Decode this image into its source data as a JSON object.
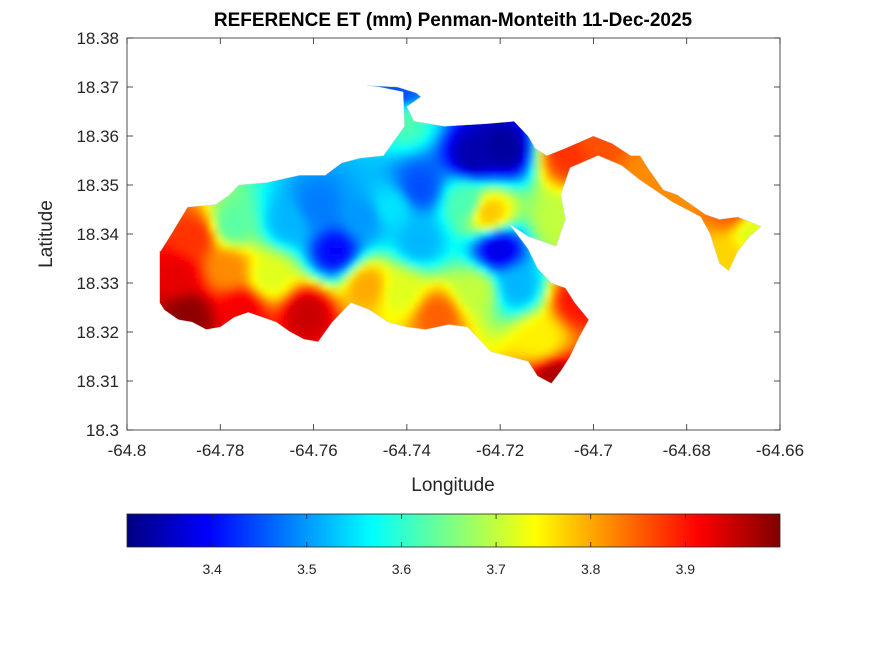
{
  "chart_data": {
    "type": "heatmap",
    "title": "REFERENCE ET (mm) Penman-Monteith 11-Dec-2025",
    "xlabel": "Longitude",
    "ylabel": "Latitude",
    "xlim": [
      -64.8,
      -64.66
    ],
    "ylim": [
      18.3,
      18.38
    ],
    "x_ticks": [
      "-64.8",
      "-64.78",
      "-64.76",
      "-64.74",
      "-64.72",
      "-64.7",
      "-64.68",
      "-64.66"
    ],
    "y_ticks": [
      "18.3",
      "18.31",
      "18.32",
      "18.33",
      "18.34",
      "18.35",
      "18.36",
      "18.37",
      "18.38"
    ],
    "grid": false,
    "colormap": "jet",
    "colorbar": {
      "location": "bottom",
      "range": [
        3.31,
        4.0
      ],
      "ticks": [
        "3.4",
        "3.5",
        "3.6",
        "3.7",
        "3.8",
        "3.9"
      ]
    },
    "colors": {
      "low": "#00008f",
      "mid": "#00ffff",
      "high": "#800000"
    },
    "region_outline_lonlat": [
      [
        -64.7928,
        18.3365
      ],
      [
        -64.7905,
        18.34
      ],
      [
        -64.787,
        18.3455
      ],
      [
        -64.781,
        18.346
      ],
      [
        -64.778,
        18.348
      ],
      [
        -64.776,
        18.35
      ],
      [
        -64.77,
        18.3505
      ],
      [
        -64.763,
        18.352
      ],
      [
        -64.7575,
        18.352
      ],
      [
        -64.754,
        18.3545
      ],
      [
        -64.75,
        18.3555
      ],
      [
        -64.745,
        18.356
      ],
      [
        -64.742,
        18.36
      ],
      [
        -64.7405,
        18.362
      ],
      [
        -64.7408,
        18.369
      ],
      [
        -64.746,
        18.37
      ],
      [
        -64.7485,
        18.3703
      ],
      [
        -64.742,
        18.37
      ],
      [
        -64.738,
        18.3688
      ],
      [
        -64.737,
        18.368
      ],
      [
        -64.74,
        18.366
      ],
      [
        -64.7385,
        18.363
      ],
      [
        -64.732,
        18.362
      ],
      [
        -64.723,
        18.3625
      ],
      [
        -64.717,
        18.363
      ],
      [
        -64.714,
        18.36
      ],
      [
        -64.7125,
        18.3575
      ],
      [
        -64.71,
        18.356
      ],
      [
        -64.706,
        18.3575
      ],
      [
        -64.7,
        18.36
      ],
      [
        -64.696,
        18.3585
      ],
      [
        -64.692,
        18.356
      ],
      [
        -64.69,
        18.356
      ],
      [
        -64.688,
        18.353
      ],
      [
        -64.685,
        18.349
      ],
      [
        -64.682,
        18.348
      ],
      [
        -64.679,
        18.346
      ],
      [
        -64.676,
        18.344
      ],
      [
        -64.673,
        18.343
      ],
      [
        -64.669,
        18.3435
      ],
      [
        -64.6665,
        18.3425
      ],
      [
        -64.664,
        18.3415
      ],
      [
        -64.6665,
        18.3395
      ],
      [
        -64.669,
        18.3365
      ],
      [
        -64.671,
        18.3325
      ],
      [
        -64.673,
        18.334
      ],
      [
        -64.675,
        18.34
      ],
      [
        -64.677,
        18.3435
      ],
      [
        -64.683,
        18.3465
      ],
      [
        -64.69,
        18.351
      ],
      [
        -64.694,
        18.354
      ],
      [
        -64.699,
        18.356
      ],
      [
        -64.705,
        18.3535
      ],
      [
        -64.707,
        18.348
      ],
      [
        -64.706,
        18.343
      ],
      [
        -64.708,
        18.3375
      ],
      [
        -64.714,
        18.3395
      ],
      [
        -64.718,
        18.342
      ],
      [
        -64.714,
        18.337
      ],
      [
        -64.712,
        18.333
      ],
      [
        -64.709,
        18.33
      ],
      [
        -64.706,
        18.329
      ],
      [
        -64.704,
        18.326
      ],
      [
        -64.701,
        18.3225
      ],
      [
        -64.703,
        18.319
      ],
      [
        -64.705,
        18.315
      ],
      [
        -64.707,
        18.312
      ],
      [
        -64.709,
        18.3095
      ],
      [
        -64.712,
        18.311
      ],
      [
        -64.714,
        18.314
      ],
      [
        -64.718,
        18.315
      ],
      [
        -64.722,
        18.316
      ],
      [
        -64.724,
        18.318
      ],
      [
        -64.727,
        18.321
      ],
      [
        -64.731,
        18.3215
      ],
      [
        -64.736,
        18.3205
      ],
      [
        -64.74,
        18.321
      ],
      [
        -64.744,
        18.322
      ],
      [
        -64.748,
        18.3245
      ],
      [
        -64.752,
        18.326
      ],
      [
        -64.756,
        18.322
      ],
      [
        -64.759,
        18.318
      ],
      [
        -64.762,
        18.3185
      ],
      [
        -64.765,
        18.32
      ],
      [
        -64.768,
        18.322
      ],
      [
        -64.771,
        18.323
      ],
      [
        -64.774,
        18.324
      ],
      [
        -64.777,
        18.323
      ],
      [
        -64.78,
        18.321
      ],
      [
        -64.783,
        18.3205
      ],
      [
        -64.786,
        18.322
      ],
      [
        -64.789,
        18.3225
      ],
      [
        -64.792,
        18.3245
      ],
      [
        -64.793,
        18.326
      ],
      [
        -64.793,
        18.3365
      ]
    ],
    "estimated_field_centers": [
      {
        "lon": -64.7875,
        "lat": 18.324,
        "value": 3.99
      },
      {
        "lon": -64.79,
        "lat": 18.332,
        "value": 3.93
      },
      {
        "lon": -64.786,
        "lat": 18.34,
        "value": 3.88
      },
      {
        "lon": -64.779,
        "lat": 18.3335,
        "value": 3.82
      },
      {
        "lon": -64.776,
        "lat": 18.3255,
        "value": 3.92
      },
      {
        "lon": -64.762,
        "lat": 18.3245,
        "value": 3.95
      },
      {
        "lon": -64.77,
        "lat": 18.332,
        "value": 3.72
      },
      {
        "lon": -64.778,
        "lat": 18.3425,
        "value": 3.63
      },
      {
        "lon": -64.766,
        "lat": 18.343,
        "value": 3.52
      },
      {
        "lon": -64.76,
        "lat": 18.346,
        "value": 3.48
      },
      {
        "lon": -64.756,
        "lat": 18.337,
        "value": 3.4
      },
      {
        "lon": -64.75,
        "lat": 18.344,
        "value": 3.5
      },
      {
        "lon": -64.744,
        "lat": 18.346,
        "value": 3.55
      },
      {
        "lon": -64.738,
        "lat": 18.35,
        "value": 3.45
      },
      {
        "lon": -64.738,
        "lat": 18.339,
        "value": 3.52
      },
      {
        "lon": -64.726,
        "lat": 18.3565,
        "value": 3.34
      },
      {
        "lon": -64.72,
        "lat": 18.358,
        "value": 3.33
      },
      {
        "lon": -64.728,
        "lat": 18.347,
        "value": 3.62
      },
      {
        "lon": -64.723,
        "lat": 18.345,
        "value": 3.78
      },
      {
        "lon": -64.721,
        "lat": 18.3375,
        "value": 3.38
      },
      {
        "lon": -64.717,
        "lat": 18.33,
        "value": 3.52
      },
      {
        "lon": -64.726,
        "lat": 18.329,
        "value": 3.7
      },
      {
        "lon": -64.742,
        "lat": 18.329,
        "value": 3.72
      },
      {
        "lon": -64.749,
        "lat": 18.33,
        "value": 3.8
      },
      {
        "lon": -64.734,
        "lat": 18.324,
        "value": 3.85
      },
      {
        "lon": -64.741,
        "lat": 18.364,
        "value": 3.62
      },
      {
        "lon": -64.742,
        "lat": 18.369,
        "value": 3.45
      },
      {
        "lon": -64.712,
        "lat": 18.319,
        "value": 3.75
      },
      {
        "lon": -64.709,
        "lat": 18.311,
        "value": 3.97
      },
      {
        "lon": -64.704,
        "lat": 18.327,
        "value": 3.9
      },
      {
        "lon": -64.706,
        "lat": 18.357,
        "value": 3.88
      },
      {
        "lon": -64.7,
        "lat": 18.36,
        "value": 3.86
      },
      {
        "lon": -64.688,
        "lat": 18.351,
        "value": 3.82
      },
      {
        "lon": -64.671,
        "lat": 18.345,
        "value": 3.85
      },
      {
        "lon": -64.672,
        "lat": 18.336,
        "value": 3.77
      },
      {
        "lon": -64.667,
        "lat": 18.341,
        "value": 3.72
      },
      {
        "lon": -64.708,
        "lat": 18.343,
        "value": 3.7
      }
    ]
  }
}
